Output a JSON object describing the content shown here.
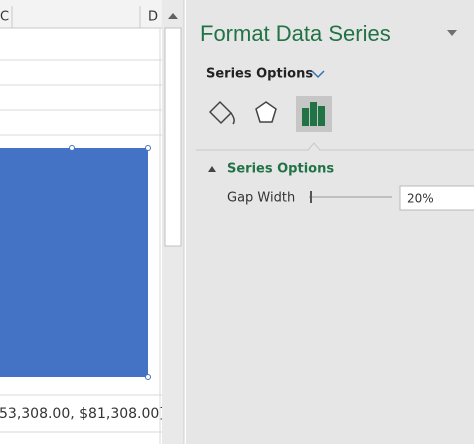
{
  "sheet": {
    "columns": [
      "C",
      "D"
    ],
    "label_text": "53,308.00, $81,308.00]"
  },
  "panel": {
    "title": "Format Data Series",
    "dropdown": "Series Options",
    "section": "Series Options",
    "gap_width_label": "Gap Width",
    "gap_width_value": "20%"
  }
}
